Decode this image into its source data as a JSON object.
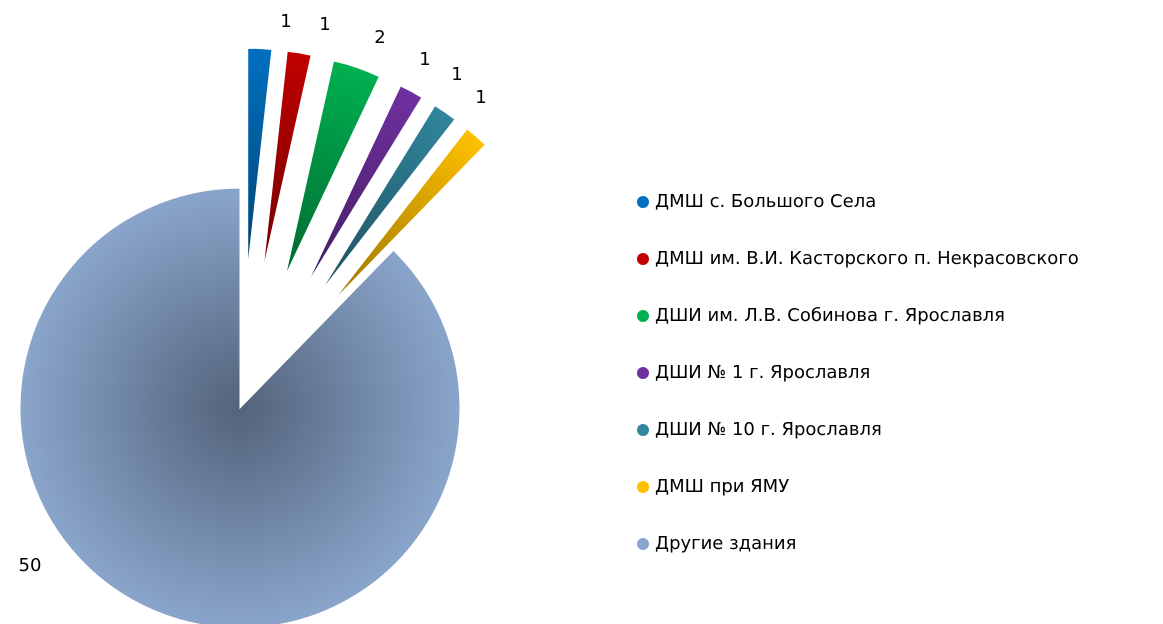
{
  "chart_data": {
    "type": "pie",
    "categories": [
      "ДМШ с. Большого Села",
      "ДМШ им. В.И. Касторского п. Некрасовского",
      "ДШИ им. Л.В. Собинова г. Ярославля",
      "ДШИ № 1 г. Ярославля",
      "ДШИ № 10 г. Ярославля",
      "ДМШ при ЯМУ",
      "Другие здания"
    ],
    "values": [
      1,
      1,
      2,
      1,
      1,
      1,
      50
    ],
    "colors": [
      "#0070c0",
      "#c00000",
      "#00b050",
      "#7030a0",
      "#31859c",
      "#ffc000",
      "#8aa5cb"
    ],
    "legend": "right"
  }
}
